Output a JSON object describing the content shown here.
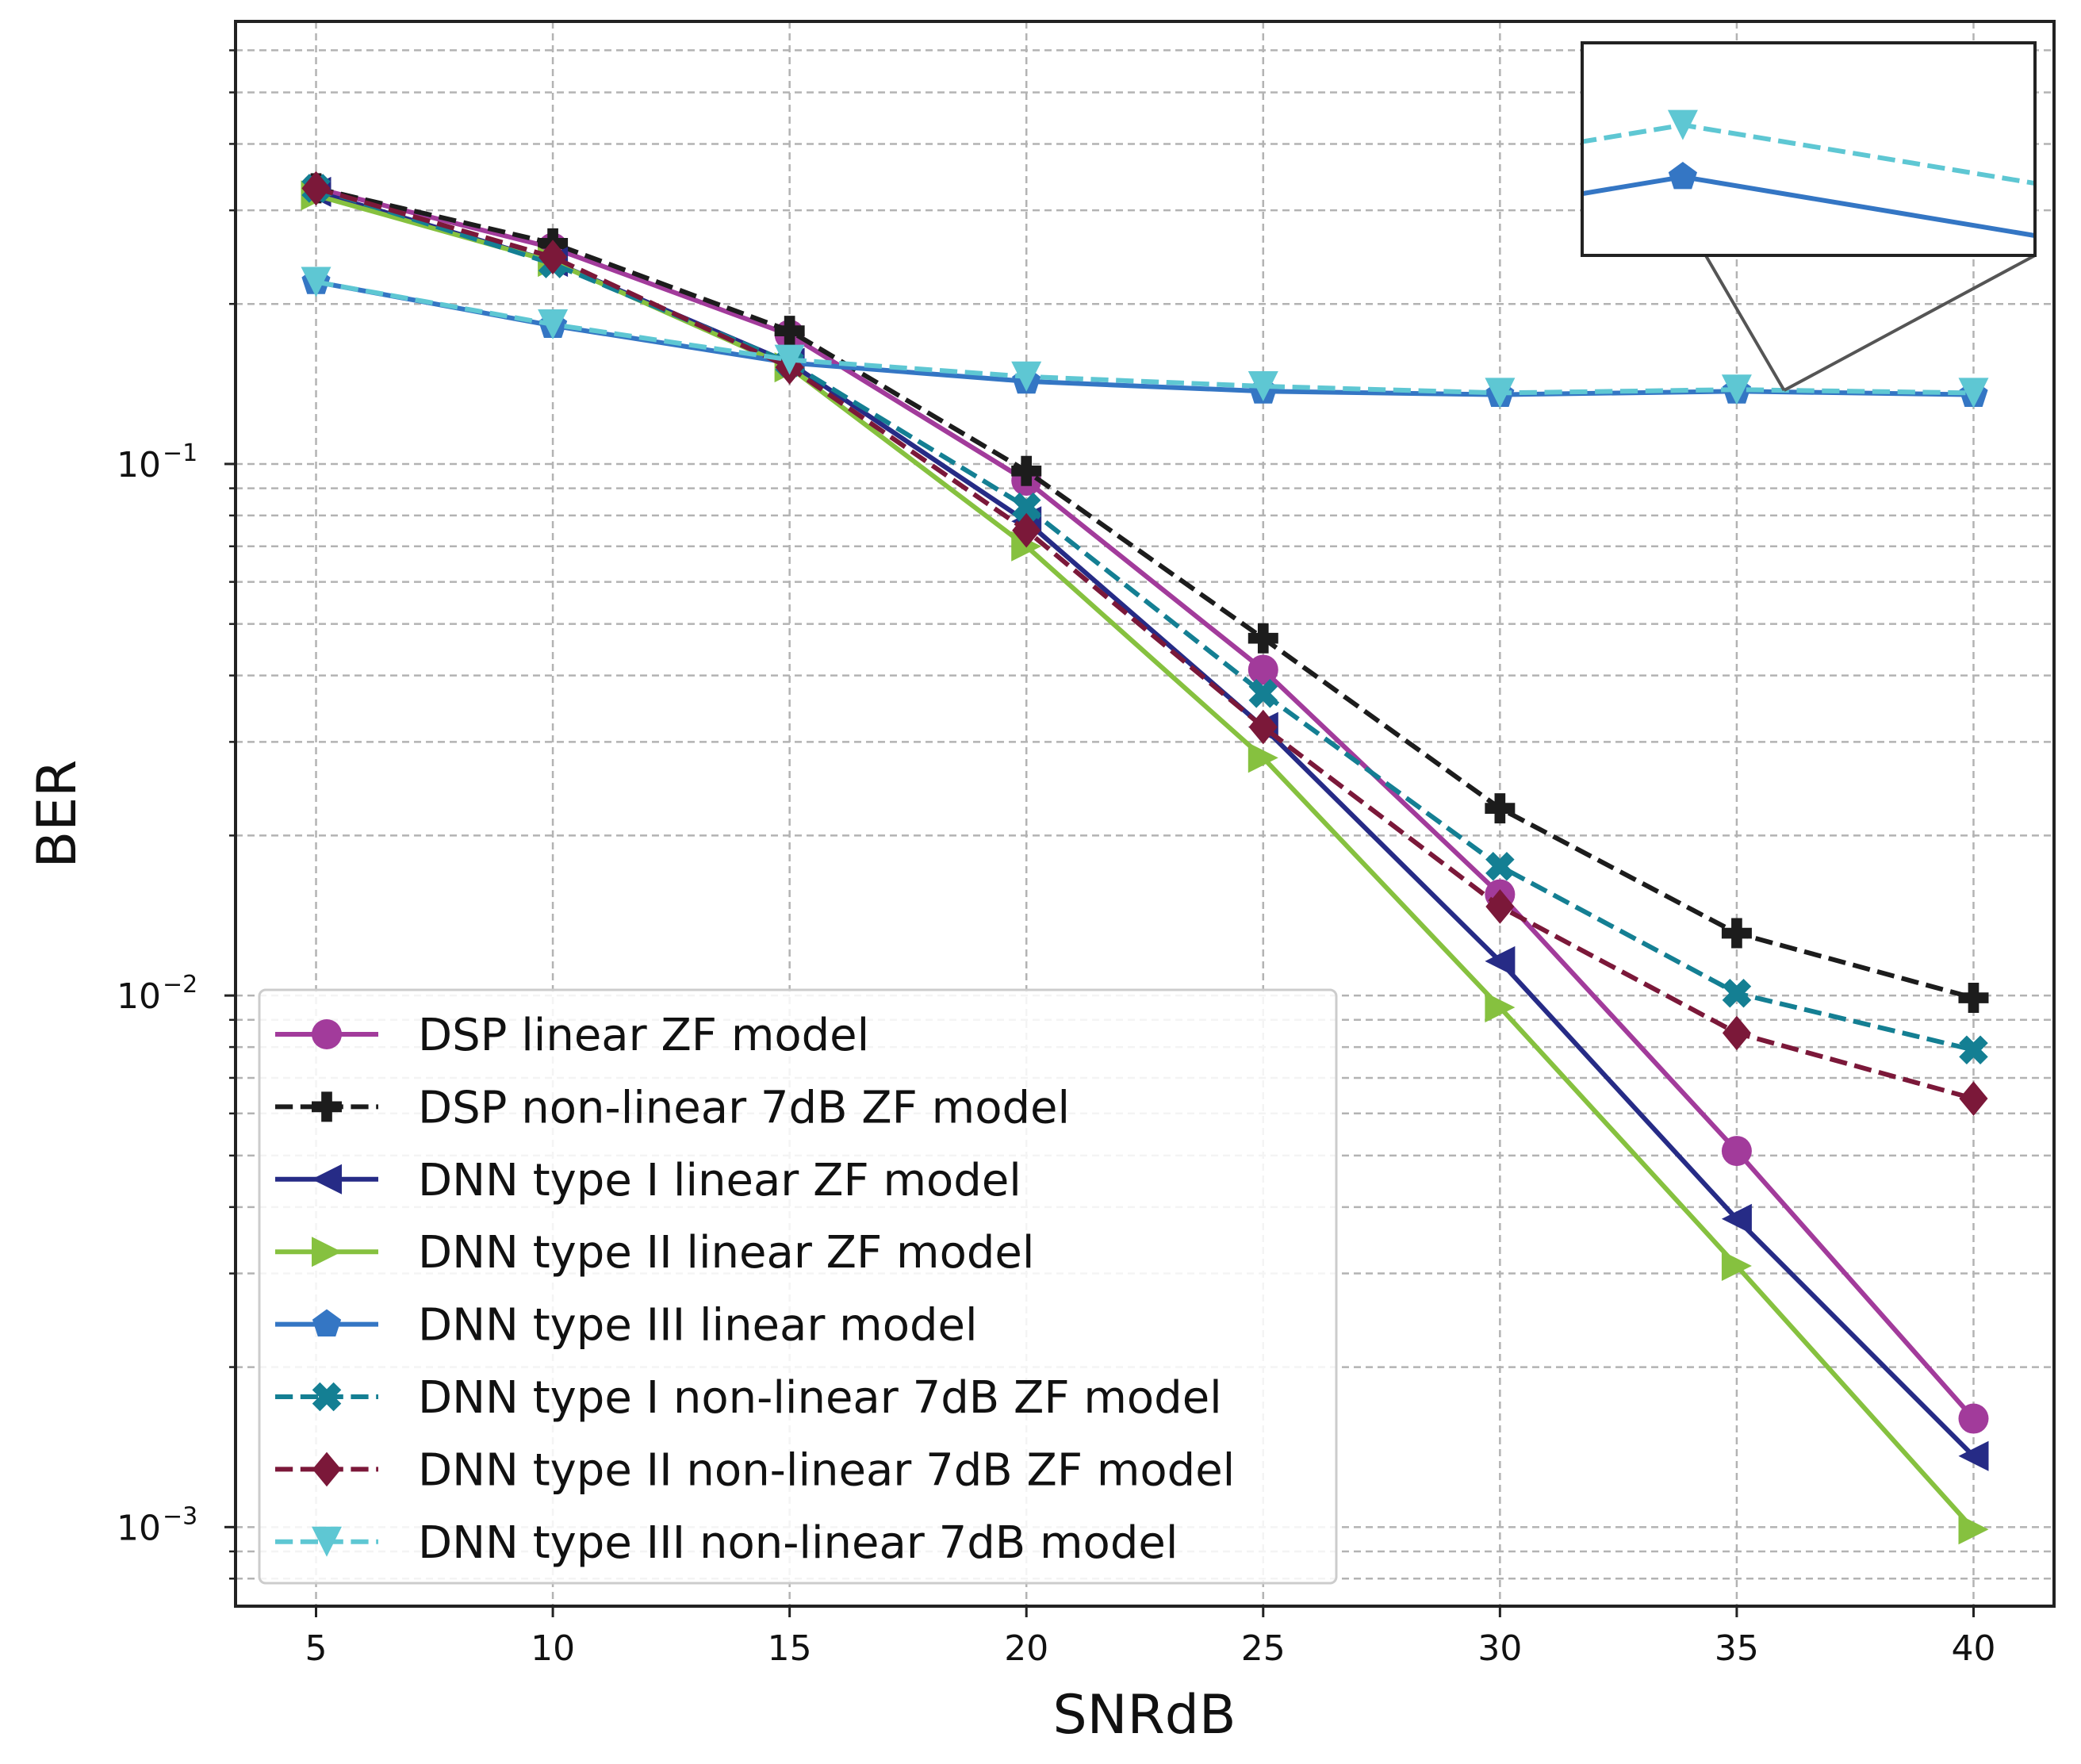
{
  "chart_data": {
    "type": "line",
    "title": "",
    "xlabel": "SNRdB",
    "ylabel": "BER",
    "yscale": "log",
    "xlim": [
      3.3,
      41.7
    ],
    "ylim": [
      0.00071,
      0.68
    ],
    "x": [
      5,
      10,
      15,
      20,
      25,
      30,
      35,
      40
    ],
    "x_ticks": [
      5,
      10,
      15,
      20,
      25,
      30,
      35,
      40
    ],
    "y_ticks": [
      {
        "value": 0.1,
        "base": "10",
        "exp": "−1"
      },
      {
        "value": 0.01,
        "base": "10",
        "exp": "−2"
      },
      {
        "value": 0.001,
        "base": "10",
        "exp": "−3"
      }
    ],
    "grid": true,
    "legend_position": "lower-left",
    "series": [
      {
        "name": "DSP linear ZF model",
        "color": "#a23b9b",
        "dash": "solid",
        "marker": "circle",
        "values": [
          0.33,
          0.255,
          0.175,
          0.093,
          0.041,
          0.0155,
          0.0051,
          0.0016
        ]
      },
      {
        "name": "DSP non-linear 7dB ZF model",
        "color": "#1c1c1c",
        "dash": "dashed",
        "marker": "plus",
        "values": [
          0.33,
          0.26,
          0.178,
          0.097,
          0.047,
          0.0225,
          0.0131,
          0.0099
        ]
      },
      {
        "name": "DNN type I linear ZF model",
        "color": "#262b86",
        "dash": "solid",
        "marker": "triangle-left",
        "values": [
          0.325,
          0.24,
          0.155,
          0.078,
          0.032,
          0.0116,
          0.0038,
          0.00136
        ]
      },
      {
        "name": "DNN type II linear ZF model",
        "color": "#86c13f",
        "dash": "solid",
        "marker": "triangle-right",
        "values": [
          0.32,
          0.24,
          0.152,
          0.07,
          0.028,
          0.0095,
          0.0031,
          0.00099
        ]
      },
      {
        "name": "DNN type III linear model",
        "color": "#3476c4",
        "dash": "solid",
        "marker": "pentagon",
        "values": [
          0.22,
          0.182,
          0.155,
          0.143,
          0.137,
          0.135,
          0.137,
          0.135
        ]
      },
      {
        "name": "DNN type I non-linear 7dB ZF model",
        "color": "#147f93",
        "dash": "dashed",
        "marker": "x",
        "values": [
          0.33,
          0.238,
          0.155,
          0.083,
          0.037,
          0.0175,
          0.0101,
          0.0079
        ]
      },
      {
        "name": "DNN type II non-linear 7dB ZF model",
        "color": "#7b1839",
        "dash": "dashed",
        "marker": "diamond",
        "values": [
          0.33,
          0.245,
          0.152,
          0.075,
          0.032,
          0.0147,
          0.0085,
          0.0064
        ]
      },
      {
        "name": "DNN type III non-linear 7dB model",
        "color": "#5ec7d3",
        "dash": "dashed",
        "marker": "triangle-down",
        "values": [
          0.22,
          0.183,
          0.157,
          0.146,
          0.14,
          0.136,
          0.138,
          0.136
        ]
      }
    ],
    "inset": {
      "zoom_x": [
        34.2,
        37.8
      ],
      "zoom_y": [
        0.1355,
        0.1396
      ],
      "series": [
        "DNN type III linear model",
        "DNN type III non-linear 7dB model"
      ]
    }
  }
}
